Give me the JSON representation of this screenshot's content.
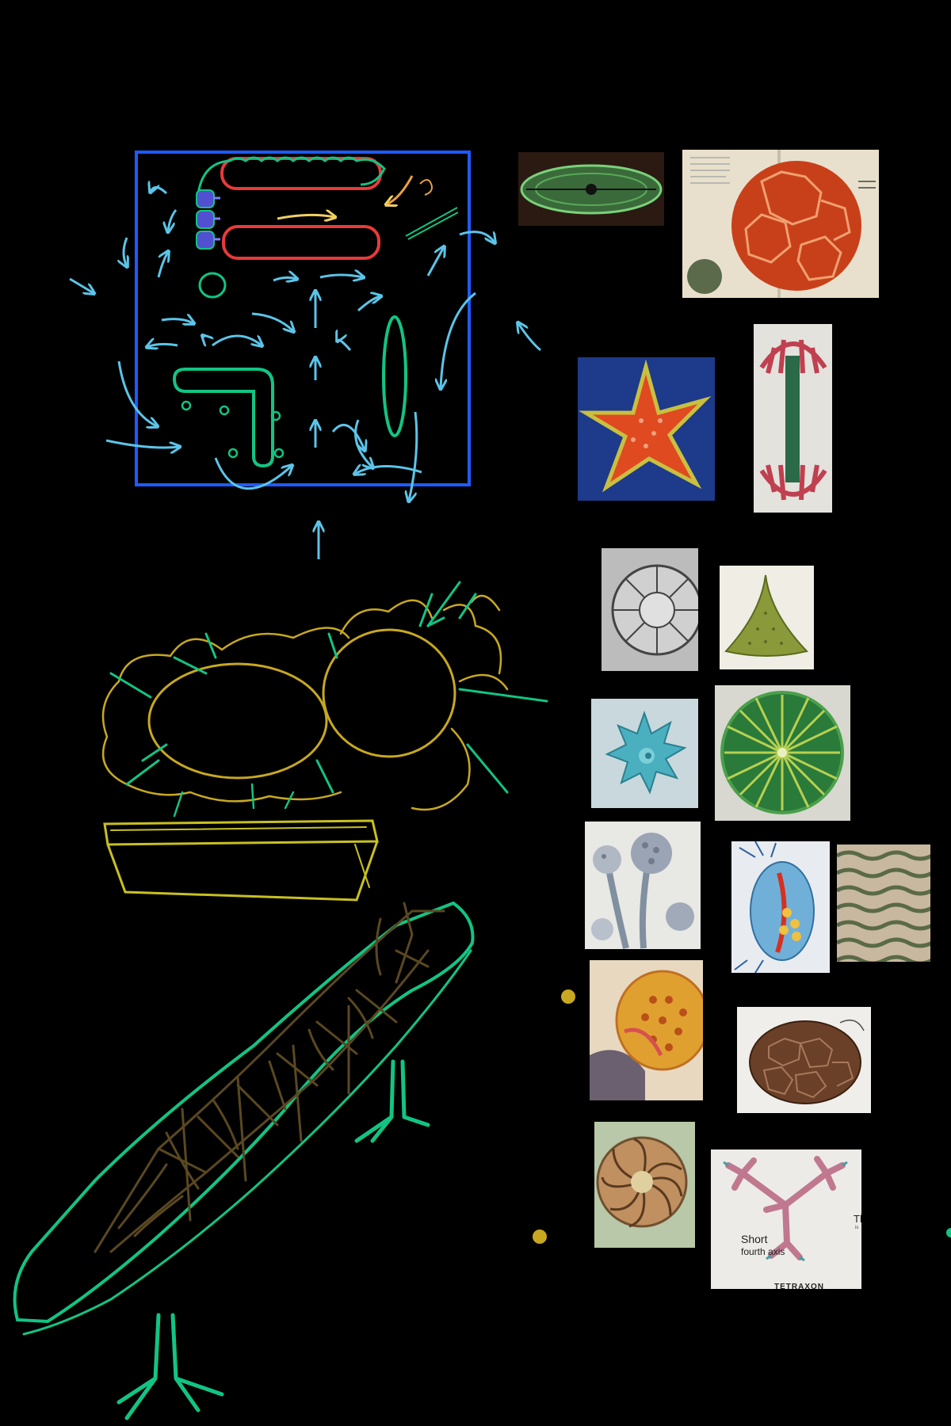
{
  "photos": [
    {
      "id": "diatom-pennate",
      "icon": "pennate-diatom-image"
    },
    {
      "id": "book-radiolarian-sphere",
      "icon": "book-page-radiolarian-image"
    },
    {
      "id": "red-star-diatom",
      "icon": "star-shaped-diatom-image"
    },
    {
      "id": "closterium-desmid",
      "icon": "elongated-desmid-image"
    },
    {
      "id": "centric-diatom-drawing",
      "icon": "centric-diatom-engraving-image"
    },
    {
      "id": "triangular-diatom",
      "icon": "triangular-diatom-image",
      "caption": ""
    },
    {
      "id": "blue-star-desmid",
      "icon": "spiky-blue-desmid-image"
    },
    {
      "id": "micrasterias-desmid",
      "icon": "green-radial-desmid-image"
    },
    {
      "id": "aspergillus-mold",
      "icon": "mold-conidiophore-image"
    },
    {
      "id": "daphnia-illustration",
      "icon": "daphnia-image"
    },
    {
      "id": "wavy-texture",
      "icon": "wavy-surface-texture-image"
    },
    {
      "id": "pollen-grain",
      "icon": "pollen-grain-image"
    },
    {
      "id": "brown-pollen",
      "icon": "brown-faceted-pollen-image"
    },
    {
      "id": "coccolith-spiral",
      "icon": "spiral-coccolith-image"
    },
    {
      "id": "tetraxon-spicule",
      "icon": "tetraxon-spicule-image",
      "labels": {
        "partial": "Th",
        "partial2": "is",
        "short": "Short",
        "axis": "fourth axis",
        "title": "TETRAXON"
      }
    }
  ],
  "drawings": [
    {
      "id": "cell-diagram-frame",
      "color": "#1f5bff"
    },
    {
      "id": "cytoplasm-flow-arrows",
      "color": "#4fb8e0"
    },
    {
      "id": "lower-cells-sketch",
      "color": "#d4b020"
    },
    {
      "id": "frustule-sketch",
      "color": "#00c080"
    }
  ],
  "colors": {
    "background": "#000000",
    "frame_blue": "#1f5bff",
    "membrane_red": "#e83a3a",
    "flow_cyan": "#5cc4e8",
    "sketch_yellow": "#c8a820",
    "sketch_green": "#12c483",
    "sketch_brown": "#4a3a18"
  }
}
